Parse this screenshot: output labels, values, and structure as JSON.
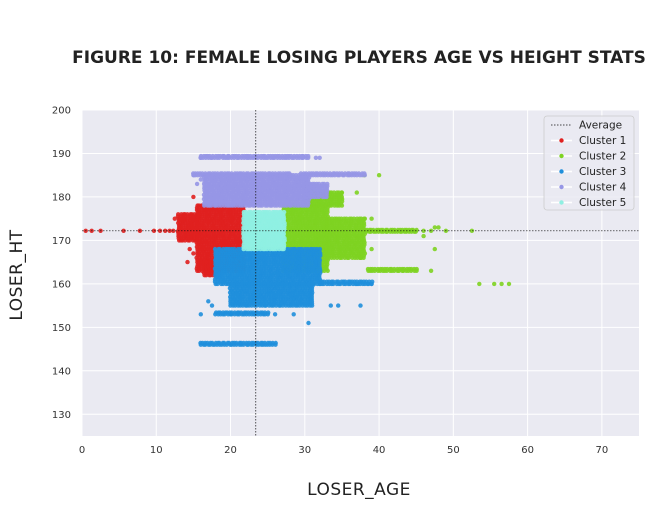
{
  "chart_data": {
    "type": "scatter",
    "title": "FIGURE 10: FEMALE LOSING PLAYERS AGE VS HEIGHT STATS",
    "xlabel": "LOSER_AGE",
    "ylabel": "LOSER_HT",
    "xlim": [
      0,
      75
    ],
    "ylim": [
      125,
      200
    ],
    "xticks": [
      0,
      10,
      20,
      30,
      40,
      50,
      60,
      70
    ],
    "yticks": [
      130,
      140,
      150,
      160,
      170,
      180,
      190,
      200
    ],
    "grid": true,
    "legend_position": "top-right",
    "average": {
      "label": "Average",
      "age": 23.4,
      "height": 172.2
    },
    "series": [
      {
        "name": "Cluster 1",
        "color": "#e0201f",
        "regions": [
          {
            "age_range": [
              15.5,
              21.7
            ],
            "height_range": [
              163,
              178
            ]
          },
          {
            "age_range": [
              13,
              15.5
            ],
            "height_range": [
              170,
              176
            ]
          },
          {
            "age_range": [
              16.5,
              18
            ],
            "height_range": [
              162,
              165
            ]
          }
        ],
        "points": [
          {
            "age": 0.5,
            "height": 172.2
          },
          {
            "age": 1.3,
            "height": 172.2
          },
          {
            "age": 2.5,
            "height": 172.2
          },
          {
            "age": 5.6,
            "height": 172.2
          },
          {
            "age": 7.8,
            "height": 172.2
          },
          {
            "age": 9.7,
            "height": 172.2
          },
          {
            "age": 10.5,
            "height": 172.2
          },
          {
            "age": 11.2,
            "height": 172.2
          },
          {
            "age": 11.8,
            "height": 172.2
          },
          {
            "age": 12.3,
            "height": 172.2
          },
          {
            "age": 13.0,
            "height": 172.2
          },
          {
            "age": 12.5,
            "height": 175
          },
          {
            "age": 14.5,
            "height": 168
          },
          {
            "age": 15.0,
            "height": 167
          },
          {
            "age": 15.0,
            "height": 180
          },
          {
            "age": 14.2,
            "height": 165
          }
        ]
      },
      {
        "name": "Cluster 2",
        "color": "#7ed321",
        "regions": [
          {
            "age_range": [
              27.2,
              33
            ],
            "height_range": [
              163,
              178
            ]
          },
          {
            "age_range": [
              33,
              38
            ],
            "height_range": [
              166,
              175
            ]
          },
          {
            "age_range": [
              30,
              35
            ],
            "height_range": [
              178,
              181
            ]
          },
          {
            "age_range": [
              38,
              45
            ],
            "height_range": [
              172,
              172.4
            ]
          },
          {
            "age_range": [
              38.5,
              45
            ],
            "height_range": [
              163,
              163.4
            ]
          }
        ],
        "points": [
          {
            "age": 35.0,
            "height": 181
          },
          {
            "age": 37.0,
            "height": 181
          },
          {
            "age": 38.0,
            "height": 185
          },
          {
            "age": 40.0,
            "height": 185
          },
          {
            "age": 38.0,
            "height": 175
          },
          {
            "age": 39.0,
            "height": 175
          },
          {
            "age": 39.0,
            "height": 168
          },
          {
            "age": 37.5,
            "height": 166
          },
          {
            "age": 46.0,
            "height": 172.2
          },
          {
            "age": 47.0,
            "height": 172.2
          },
          {
            "age": 49.0,
            "height": 172.2
          },
          {
            "age": 52.5,
            "height": 172.2
          },
          {
            "age": 47.5,
            "height": 173
          },
          {
            "age": 48.0,
            "height": 173
          },
          {
            "age": 46.0,
            "height": 171
          },
          {
            "age": 47.5,
            "height": 168
          },
          {
            "age": 47.0,
            "height": 163
          },
          {
            "age": 53.5,
            "height": 160
          },
          {
            "age": 55.5,
            "height": 160
          },
          {
            "age": 57.5,
            "height": 160
          },
          {
            "age": 56.5,
            "height": 160
          }
        ]
      },
      {
        "name": "Cluster 3",
        "color": "#1f8fdb",
        "regions": [
          {
            "age_range": [
              18,
              32
            ],
            "height_range": [
              160,
              168
            ]
          },
          {
            "age_range": [
              20,
              31
            ],
            "height_range": [
              155,
              160
            ]
          },
          {
            "age_range": [
              32,
              39
            ],
            "height_range": [
              160,
              160.5
            ]
          },
          {
            "age_range": [
              16,
              26
            ],
            "height_range": [
              146,
              146.4
            ]
          },
          {
            "age_range": [
              18,
              25
            ],
            "height_range": [
              153,
              153.4
            ]
          }
        ],
        "points": [
          {
            "age": 16.0,
            "height": 153
          },
          {
            "age": 17.0,
            "height": 156
          },
          {
            "age": 17.5,
            "height": 155
          },
          {
            "age": 26.0,
            "height": 153
          },
          {
            "age": 28.5,
            "height": 153
          },
          {
            "age": 30.5,
            "height": 151
          },
          {
            "age": 33.5,
            "height": 155
          },
          {
            "age": 34.5,
            "height": 155
          },
          {
            "age": 37.5,
            "height": 155
          },
          {
            "age": 37.0,
            "height": 160
          },
          {
            "age": 39.0,
            "height": 160
          }
        ]
      },
      {
        "name": "Cluster 4",
        "color": "#9696e6",
        "regions": [
          {
            "age_range": [
              16.5,
              30.5
            ],
            "height_range": [
              178,
              185
            ]
          },
          {
            "age_range": [
              15,
              28
            ],
            "height_range": [
              185,
              185.4
            ]
          },
          {
            "age_range": [
              16,
              30.5
            ],
            "height_range": [
              189,
              189.4
            ]
          },
          {
            "age_range": [
              29.5,
              38
            ],
            "height_range": [
              185,
              185.4
            ]
          },
          {
            "age_range": [
              30,
              33
            ],
            "height_range": [
              180,
              183
            ]
          }
        ],
        "points": [
          {
            "age": 15.0,
            "height": 185
          },
          {
            "age": 15.5,
            "height": 183
          },
          {
            "age": 16.0,
            "height": 184
          },
          {
            "age": 31.5,
            "height": 189
          },
          {
            "age": 32.0,
            "height": 189
          },
          {
            "age": 16.0,
            "height": 189
          }
        ]
      },
      {
        "name": "Cluster 5",
        "color": "#8fefe2",
        "regions": [
          {
            "age_range": [
              21.8,
              27.2
            ],
            "height_range": [
              168,
              176.5
            ]
          }
        ],
        "points": []
      }
    ]
  }
}
